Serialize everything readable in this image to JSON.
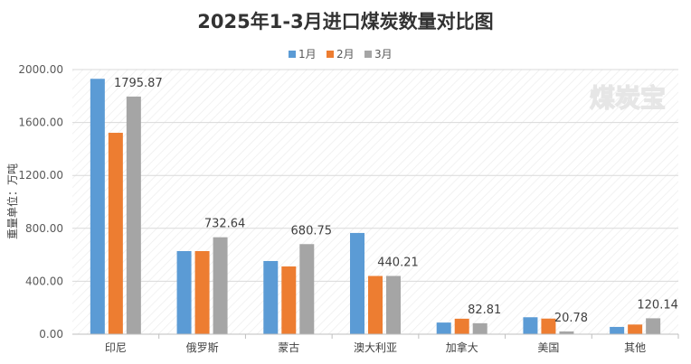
{
  "chart_data": {
    "type": "bar",
    "title": "2025年1-3月进口煤炭数量对比图",
    "ylabel": "重量单位：万吨",
    "xlabel": "",
    "categories": [
      "印尼",
      "俄罗斯",
      "蒙古",
      "澳大利亚",
      "加拿大",
      "美国",
      "其他"
    ],
    "series": [
      {
        "name": "1月",
        "color": "#5b9bd5",
        "values": [
          1930,
          628,
          553,
          765,
          88,
          128,
          55
        ]
      },
      {
        "name": "2月",
        "color": "#ed7d31",
        "values": [
          1522,
          628,
          512,
          440,
          117,
          118,
          73
        ]
      },
      {
        "name": "3月",
        "color": "#a5a5a5",
        "values": [
          1795.87,
          732.64,
          680.75,
          440.21,
          82.81,
          20.78,
          120.14
        ]
      }
    ],
    "data_labels": {
      "series_index": 2,
      "labels": [
        "1795.87",
        "732.64",
        "680.75",
        "440.21",
        "82.81",
        "20.78",
        "120.14"
      ]
    },
    "y_ticks": [
      "0.00",
      "400.00",
      "800.00",
      "1200.00",
      "1600.00",
      "2000.00"
    ],
    "ylim": [
      0,
      2000
    ],
    "grid": true,
    "legend_position": "top-center",
    "watermark": "煤炭宝"
  }
}
